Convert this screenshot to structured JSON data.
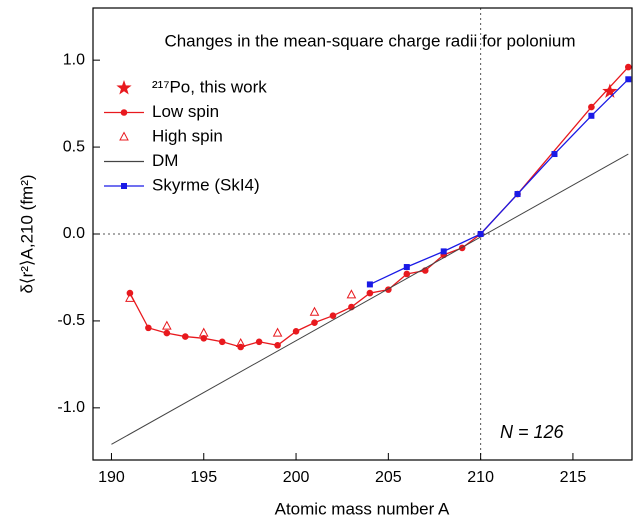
{
  "chart_data": {
    "type": "line",
    "title": "Changes in the mean-square charge radii for polonium",
    "x_label": "Atomic mass number A",
    "y_label": "δ⟨r²⟩A,210 (fm²)",
    "annotation": "N = 126",
    "xlim": [
      189,
      218.2
    ],
    "ylim": [
      -1.3,
      1.3
    ],
    "xticks": [
      190,
      195,
      200,
      205,
      210,
      215
    ],
    "yticks": [
      {
        "value": -1,
        "label": "-1.0"
      },
      -0.5,
      {
        "value": 0,
        "label": "0.0"
      },
      0.5,
      {
        "value": 1,
        "label": "1.0"
      }
    ],
    "reference_lines": {
      "x": 210,
      "y": 0
    },
    "legend": "upper left",
    "series": [
      {
        "name": "²¹⁷Po, this work",
        "color": "#e8191e",
        "marker": "star",
        "line": false,
        "x": [
          217
        ],
        "values": [
          0.82
        ]
      },
      {
        "name": "Low spin",
        "color": "#e8191e",
        "marker": "circle",
        "line": true,
        "x": [
          191,
          192,
          193,
          194,
          195,
          196,
          197,
          198,
          199,
          200,
          201,
          202,
          203,
          204,
          205,
          206,
          207,
          208,
          209,
          210,
          212,
          216,
          218
        ],
        "values": [
          -0.34,
          -0.54,
          -0.57,
          -0.59,
          -0.6,
          -0.62,
          -0.65,
          -0.62,
          -0.64,
          -0.56,
          -0.51,
          -0.47,
          -0.42,
          -0.34,
          -0.32,
          -0.23,
          -0.21,
          -0.12,
          -0.08,
          0,
          0.23,
          0.73,
          0.96
        ]
      },
      {
        "name": "High spin",
        "color": "#e8191e",
        "marker": "triangle",
        "line": false,
        "x": [
          191,
          193,
          195,
          197,
          199,
          201,
          203
        ],
        "values": [
          -0.37,
          -0.53,
          -0.57,
          -0.63,
          -0.57,
          -0.45,
          -0.35
        ]
      },
      {
        "name": "DM",
        "color": "#444444",
        "marker": "none",
        "line": true,
        "x": [
          190,
          218
        ],
        "values": [
          -1.21,
          0.46
        ]
      },
      {
        "name": "Skyrme (SkI4)",
        "color": "#1a1ae6",
        "marker": "square",
        "line": true,
        "x": [
          204,
          206,
          208,
          210,
          212,
          214,
          216,
          218
        ],
        "values": [
          -0.29,
          -0.19,
          -0.1,
          0,
          0.23,
          0.46,
          0.68,
          0.89
        ]
      }
    ]
  }
}
